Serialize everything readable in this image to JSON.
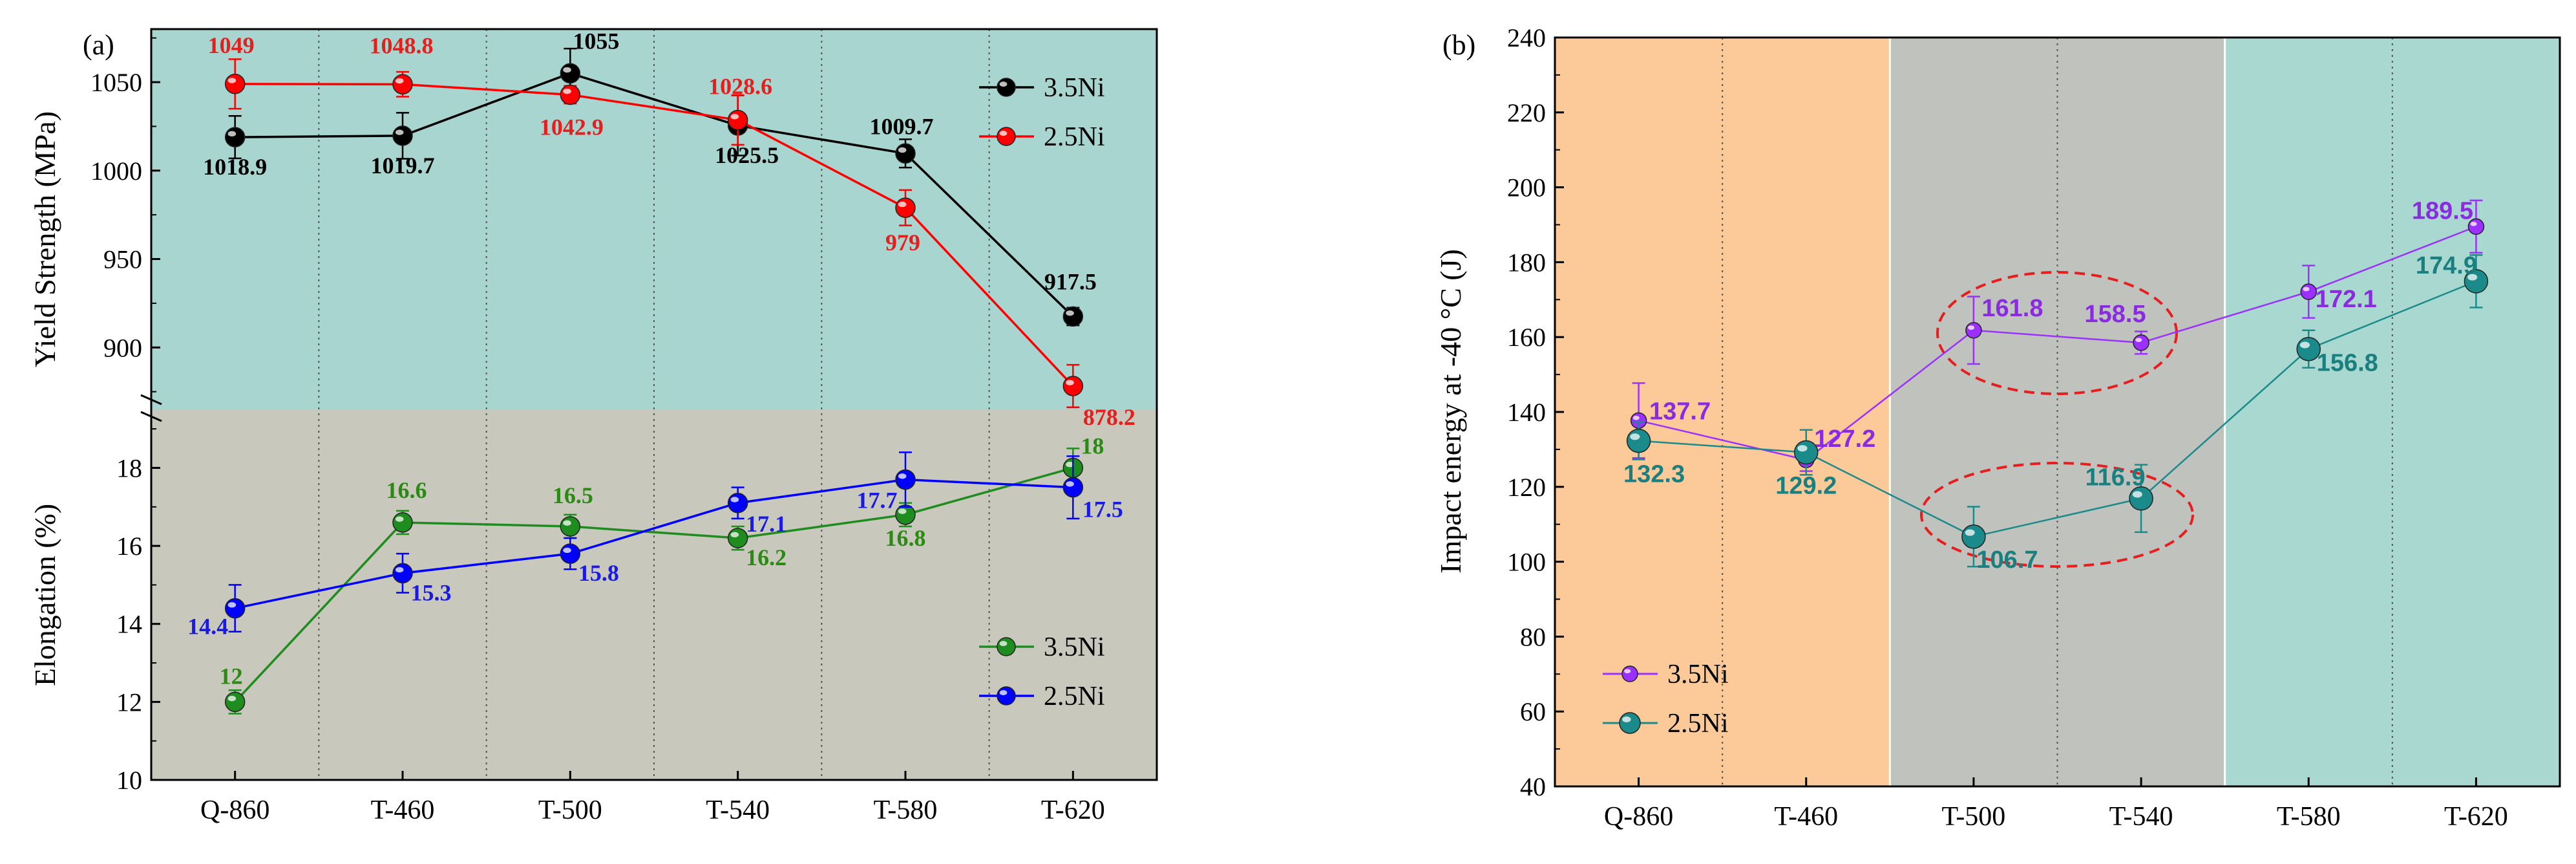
{
  "chart_data": [
    {
      "panel": "(a)",
      "type": "line",
      "categories": [
        "Q-860",
        "T-460",
        "T-500",
        "T-540",
        "T-580",
        "T-620"
      ],
      "colors": {
        "bg_top": "#a8d5cf",
        "bg_bottom": "#c9c8bc"
      },
      "subplots": [
        {
          "ylabel": "Yield Strength (MPa)",
          "ylim": [
            865,
            1080
          ],
          "yticks": [
            900,
            950,
            1000,
            1050
          ],
          "series": [
            {
              "name": "3.5Ni",
              "color": "#000000",
              "text_color": "#000000",
              "values": [
                1018.9,
                1019.7,
                1055,
                1025.5,
                1009.7,
                917.5
              ],
              "errors": [
                12,
                13,
                14,
                17,
                8,
                5
              ],
              "labels": [
                "1018.9",
                "1019.7",
                "1055",
                "1025.5",
                "1009.7",
                "917.5"
              ]
            },
            {
              "name": "2.5Ni",
              "color": "#ff0000",
              "text_color": "#e61e1e",
              "values": [
                1049,
                1048.8,
                1042.9,
                1028.6,
                979,
                878.2
              ],
              "errors": [
                14,
                7,
                5,
                14,
                10,
                12
              ],
              "labels": [
                "1049",
                "1048.8",
                "1042.9",
                "1028.6",
                "979",
                "878.2"
              ]
            }
          ]
        },
        {
          "ylabel": "Elongation (%)",
          "ylim": [
            10,
            19.5
          ],
          "yticks": [
            10,
            12,
            14,
            16,
            18
          ],
          "series": [
            {
              "name": "3.5Ni",
              "color": "#1e8c1e",
              "text_color": "#2a8a14",
              "values": [
                12,
                16.6,
                16.5,
                16.2,
                16.8,
                18
              ],
              "errors": [
                0.3,
                0.3,
                0.3,
                0.3,
                0.3,
                0.5
              ],
              "labels": [
                "12",
                "16.6",
                "16.5",
                "16.2",
                "16.8",
                "18"
              ]
            },
            {
              "name": "2.5Ni",
              "color": "#0000ff",
              "text_color": "#1a1ae6",
              "values": [
                14.4,
                15.3,
                15.8,
                17.1,
                17.7,
                17.5
              ],
              "errors": [
                0.6,
                0.5,
                0.4,
                0.4,
                0.7,
                0.8
              ],
              "labels": [
                "14.4",
                "15.3",
                "15.8",
                "17.1",
                "17.7",
                "17.5"
              ]
            }
          ]
        }
      ]
    },
    {
      "panel": "(b)",
      "type": "line",
      "categories": [
        "Q-860",
        "T-460",
        "T-500",
        "T-540",
        "T-580",
        "T-620"
      ],
      "ylabel": "Impact energy at -40 °C (J)",
      "ylim": [
        40,
        240
      ],
      "yticks": [
        40,
        60,
        80,
        100,
        120,
        140,
        160,
        180,
        200,
        220,
        240
      ],
      "region_colors": [
        "#fcc998",
        "#bfc2bd",
        "#a8d8cf"
      ],
      "annotation_color": "#e61e1e",
      "series": [
        {
          "name": "3.5Ni",
          "color": "#9b30ff",
          "text_color": "#8a2be2",
          "values": [
            137.7,
            127.2,
            161.8,
            158.5,
            172.1,
            189.5
          ],
          "errors": [
            10,
            3,
            9,
            3,
            7,
            7
          ],
          "labels": [
            "137.7",
            "127.2",
            "161.8",
            "158.5",
            "172.1",
            "189.5"
          ]
        },
        {
          "name": "2.5Ni",
          "color": "#1a8a8a",
          "text_color": "#1a7f7f",
          "values": [
            132.3,
            129.2,
            106.7,
            116.9,
            156.8,
            174.9
          ],
          "errors": [
            5,
            6,
            8,
            9,
            5,
            7
          ],
          "labels": [
            "132.3",
            "129.2",
            "106.7",
            "116.9",
            "156.8",
            "174.9"
          ]
        }
      ]
    }
  ]
}
